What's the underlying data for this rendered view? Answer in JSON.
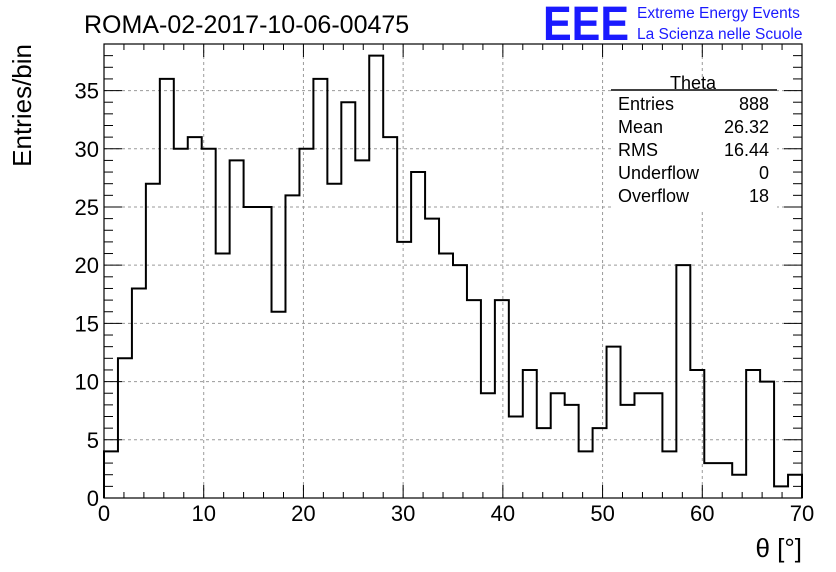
{
  "chart_data": {
    "type": "bar",
    "title": "ROMA-02-2017-10-06-00475",
    "xlabel": "θ [°]",
    "ylabel": "Entries/bin",
    "xlim": [
      0,
      70
    ],
    "ylim": [
      0,
      39
    ],
    "grid": true,
    "bin_width": 1.4,
    "x_ticks": [
      "0",
      "10",
      "20",
      "30",
      "40",
      "50",
      "60",
      "70"
    ],
    "y_ticks": [
      "0",
      "5",
      "10",
      "15",
      "20",
      "25",
      "30",
      "35"
    ],
    "x_tick_values": [
      0,
      10,
      20,
      30,
      40,
      50,
      60,
      70
    ],
    "y_tick_values": [
      0,
      5,
      10,
      15,
      20,
      25,
      30,
      35
    ],
    "values": [
      4,
      12,
      18,
      27,
      36,
      30,
      31,
      30,
      21,
      29,
      25,
      25,
      16,
      26,
      30,
      36,
      27,
      34,
      29,
      38,
      31,
      22,
      28,
      24,
      21,
      20,
      17,
      9,
      17,
      7,
      11,
      6,
      9,
      8,
      4,
      6,
      13,
      8,
      9,
      9,
      4,
      20,
      11,
      3,
      3,
      2,
      11,
      10,
      1,
      2
    ]
  },
  "stats_box": {
    "title": "Theta",
    "rows": [
      {
        "label": "Entries",
        "value": "888"
      },
      {
        "label": "Mean",
        "value": "26.32"
      },
      {
        "label": "RMS",
        "value": "16.44"
      },
      {
        "label": "Underflow",
        "value": "0"
      },
      {
        "label": "Overflow",
        "value": "18"
      }
    ]
  },
  "logo": {
    "mark": "EEE",
    "line1": "Extreme Energy Events",
    "line2": "La Scienza nelle Scuole",
    "color": "#1a1aff"
  }
}
